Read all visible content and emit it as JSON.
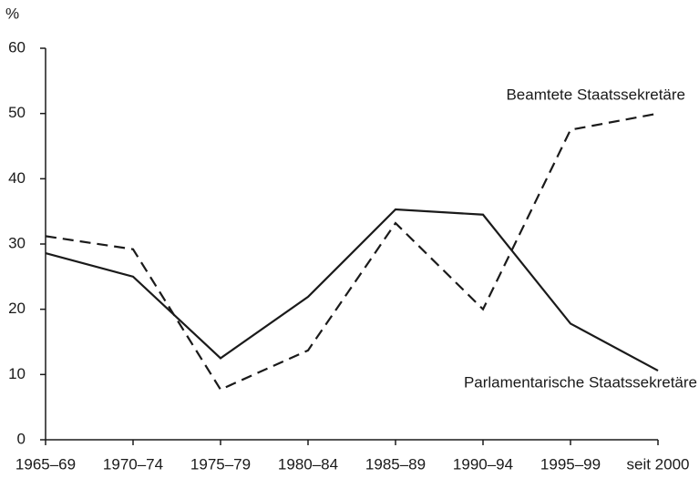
{
  "chart_data": {
    "type": "line",
    "ylabel": "%",
    "categories": [
      "1965–69",
      "1970–74",
      "1975–79",
      "1980–84",
      "1985–89",
      "1990–94",
      "1995–99",
      "seit 2000"
    ],
    "series": [
      {
        "name": "Beamtete Staatssekretäre",
        "color": "#1a1a1a",
        "linestyle": "dashed",
        "values": [
          31.2,
          29.2,
          7.7,
          13.7,
          33.2,
          20.0,
          47.5,
          50.0
        ]
      },
      {
        "name": "Parlamentarische Staatssekretäre",
        "color": "#1a1a1a",
        "linestyle": "solid",
        "values": [
          28.6,
          25.0,
          12.5,
          21.9,
          35.3,
          34.5,
          17.8,
          10.6
        ]
      }
    ],
    "ylim": [
      0,
      60
    ],
    "yticks": [
      0,
      10,
      20,
      30,
      40,
      50,
      60
    ],
    "grid": false
  }
}
